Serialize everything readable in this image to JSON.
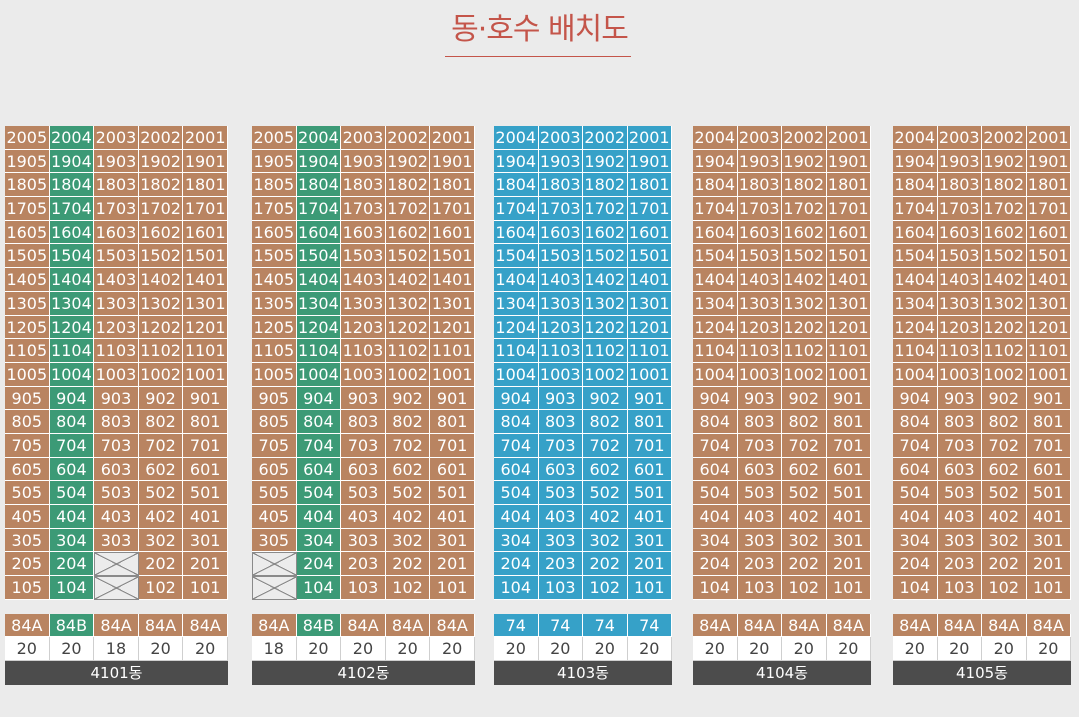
{
  "page": {
    "title": "동·호수 배치도"
  },
  "colors": {
    "regular": "#b98461",
    "highlight_84b": "#3c9a76",
    "type74": "#36a1c8",
    "title": "#c4554a"
  },
  "buildings": [
    {
      "name": "4101동",
      "color": "brown",
      "columns": [
        {
          "line": "05",
          "type": "84A",
          "count": "20",
          "highlight": false
        },
        {
          "line": "04",
          "type": "84B",
          "count": "20",
          "highlight": true
        },
        {
          "line": "03",
          "type": "84A",
          "count": "18",
          "highlight": false
        },
        {
          "line": "02",
          "type": "84A",
          "count": "20",
          "highlight": false
        },
        {
          "line": "01",
          "type": "84A",
          "count": "20",
          "highlight": false
        }
      ],
      "empty": [
        "203",
        "103"
      ]
    },
    {
      "name": "4102동",
      "color": "brown",
      "columns": [
        {
          "line": "05",
          "type": "84A",
          "count": "18",
          "highlight": false
        },
        {
          "line": "04",
          "type": "84B",
          "count": "20",
          "highlight": true
        },
        {
          "line": "03",
          "type": "84A",
          "count": "20",
          "highlight": false
        },
        {
          "line": "02",
          "type": "84A",
          "count": "20",
          "highlight": false
        },
        {
          "line": "01",
          "type": "84A",
          "count": "20",
          "highlight": false
        }
      ],
      "empty": [
        "205",
        "105"
      ]
    },
    {
      "name": "4103동",
      "color": "blue",
      "columns": [
        {
          "line": "04",
          "type": "74",
          "count": "20",
          "highlight": false
        },
        {
          "line": "03",
          "type": "74",
          "count": "20",
          "highlight": false
        },
        {
          "line": "02",
          "type": "74",
          "count": "20",
          "highlight": false
        },
        {
          "line": "01",
          "type": "74",
          "count": "20",
          "highlight": false
        }
      ],
      "empty": []
    },
    {
      "name": "4104동",
      "color": "brown",
      "columns": [
        {
          "line": "04",
          "type": "84A",
          "count": "20",
          "highlight": false
        },
        {
          "line": "03",
          "type": "84A",
          "count": "20",
          "highlight": false
        },
        {
          "line": "02",
          "type": "84A",
          "count": "20",
          "highlight": false
        },
        {
          "line": "01",
          "type": "84A",
          "count": "20",
          "highlight": false
        }
      ],
      "empty": []
    },
    {
      "name": "4105동",
      "color": "brown",
      "columns": [
        {
          "line": "04",
          "type": "84A",
          "count": "20",
          "highlight": false
        },
        {
          "line": "03",
          "type": "84A",
          "count": "20",
          "highlight": false
        },
        {
          "line": "02",
          "type": "84A",
          "count": "20",
          "highlight": false
        },
        {
          "line": "01",
          "type": "84A",
          "count": "20",
          "highlight": false
        }
      ],
      "empty": []
    }
  ]
}
